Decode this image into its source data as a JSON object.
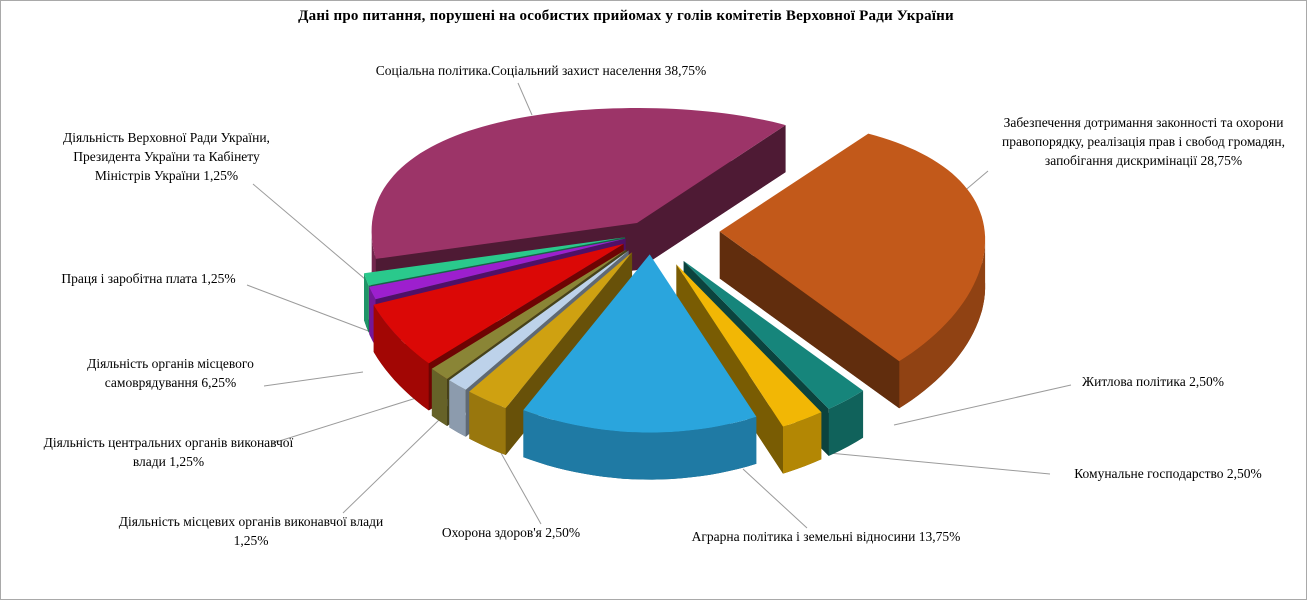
{
  "title": "Дані про питання, порушені  на особистих прийомах у голів комітетів Верховної Ради України",
  "chart_data": {
    "type": "pie",
    "style": "3d-exploded",
    "title": "Дані про питання, порушені  на особистих прийомах у голів комітетів Верховної Ради України",
    "units": "percent",
    "direction": "clockwise",
    "start_angle_deg": 256.5,
    "legend_position": "callout-labels",
    "slices": [
      {
        "label": "Соціальна політика.Соціальний  захист населення",
        "value": 38.75,
        "pct_text": "38,75%",
        "color": "#9C3468",
        "explode": 0.1
      },
      {
        "label": "Забезпечення дотримання законності  та охорони правопорядку,  реалізація прав і свобод громадян,  запобігання дискримінації",
        "value": 28.75,
        "pct_text": "28,75%",
        "color": "#C2591A",
        "explode": 0.26
      },
      {
        "label": "Житлова політика",
        "value": 2.5,
        "pct_text": "2,50%",
        "color": "#16857B",
        "explode": 0.2
      },
      {
        "label": "Комунальне господарство",
        "value": 2.5,
        "pct_text": "2,50%",
        "color": "#F2B705",
        "explode": 0.2
      },
      {
        "label": "Аграрна політика  і земельні відносини",
        "value": 13.75,
        "pct_text": "13,75%",
        "color": "#2AA5DD",
        "explode": 0.12
      },
      {
        "label": "Охорона здоров'я",
        "value": 2.5,
        "pct_text": "2,50%",
        "color": "#CFA111",
        "explode": 0.13
      },
      {
        "label": "Діяльність місцевих органів виконавчої влади",
        "value": 1.25,
        "pct_text": "1,25%",
        "color": "#BDD2EA",
        "explode": 0.13
      },
      {
        "label": "Діяльність центральних  органів виконавчої влади",
        "value": 1.25,
        "pct_text": "1,25%",
        "color": "#8A8536",
        "explode": 0.13
      },
      {
        "label": "Діяльність органів  місцевого самоврядування",
        "value": 6.25,
        "pct_text": "6,25%",
        "color": "#DB0806",
        "explode": 0.12
      },
      {
        "label": "Праця і заробітна плата",
        "value": 1.25,
        "pct_text": "1,25%",
        "color": "#9D1FCE",
        "explode": 0.1
      },
      {
        "label": "Діяльність Верховної  Ради України, Президента України та Кабінету Міністрів  України",
        "value": 1.25,
        "pct_text": "1,25%",
        "color": "#2AC98C",
        "explode": 0.1
      }
    ]
  },
  "callouts": [
    {
      "id": "soc",
      "text": "Соціальна політика.Соціальний  захист населення 38,75%"
    },
    {
      "id": "zab",
      "text": "Забезпечення дотримання законності  та охорони правопорядку,  реалізація прав і свобод громадян,  запобігання дискримінації  28,75%"
    },
    {
      "id": "zhy",
      "text": "Житлова політика  2,50%"
    },
    {
      "id": "kom",
      "text": "Комунальне господарство 2,50%"
    },
    {
      "id": "agr",
      "text": "Аграрна політика  і земельні відносини  13,75%"
    },
    {
      "id": "okh",
      "text": "Охорона здоров'я 2,50%"
    },
    {
      "id": "mis",
      "text": "Діяльність місцевих органів виконавчої влади 1,25%"
    },
    {
      "id": "tse",
      "text": "Діяльність центральних  органів виконавчої влади 1,25%"
    },
    {
      "id": "sam",
      "text": "Діяльність органів  місцевого самоврядування 6,25%"
    },
    {
      "id": "pra",
      "text": "Праця і заробітна плата 1,25%"
    },
    {
      "id": "vru",
      "text": "Діяльність Верховної  Ради України, Президента України та Кабінету Міністрів  України 1,25%"
    }
  ]
}
